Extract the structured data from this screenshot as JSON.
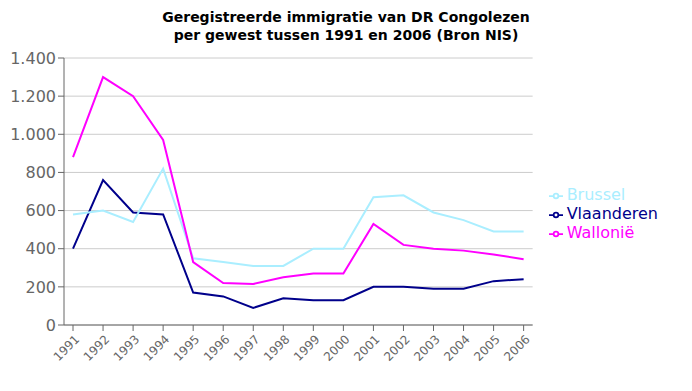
{
  "chart_data": {
    "type": "line",
    "title": "Geregistreerde immigratie van DR Congolezen\nper gewest tussen 1991 en 2006 (Bron NIS)",
    "x": [
      1991,
      1992,
      1993,
      1994,
      1995,
      1996,
      1997,
      1998,
      1999,
      2000,
      2001,
      2002,
      2003,
      2004,
      2005,
      2006
    ],
    "series": [
      {
        "name": "Vlaanderen",
        "color": "#00008B",
        "values": [
          400,
          760,
          590,
          580,
          170,
          150,
          90,
          140,
          130,
          130,
          200,
          200,
          190,
          190,
          230,
          240
        ]
      },
      {
        "name": "Brussel",
        "color": "#AAEEFF",
        "values": [
          580,
          600,
          540,
          820,
          350,
          330,
          310,
          310,
          400,
          400,
          670,
          680,
          590,
          550,
          490,
          490
        ]
      },
      {
        "name": "Wallonië",
        "color": "#FF00FF",
        "values": [
          880,
          1300,
          1200,
          970,
          330,
          220,
          215,
          250,
          270,
          270,
          530,
          420,
          400,
          390,
          370,
          345
        ]
      }
    ],
    "xlim": [
      1990.7,
      2006.3
    ],
    "xticks": [
      1991,
      1992,
      1993,
      1994,
      1995,
      1996,
      1997,
      1998,
      1999,
      2000,
      2001,
      2002,
      2003,
      2004,
      2005,
      2006
    ],
    "ylim": [
      0,
      1400
    ],
    "yticks": [
      0,
      200,
      400,
      600,
      800,
      {
        "value": 1000,
        "label": "1.000"
      },
      {
        "value": 1200,
        "label": "1.200"
      },
      {
        "value": 1400,
        "label": "1.400"
      }
    ],
    "grid": "y",
    "legend": "right"
  }
}
